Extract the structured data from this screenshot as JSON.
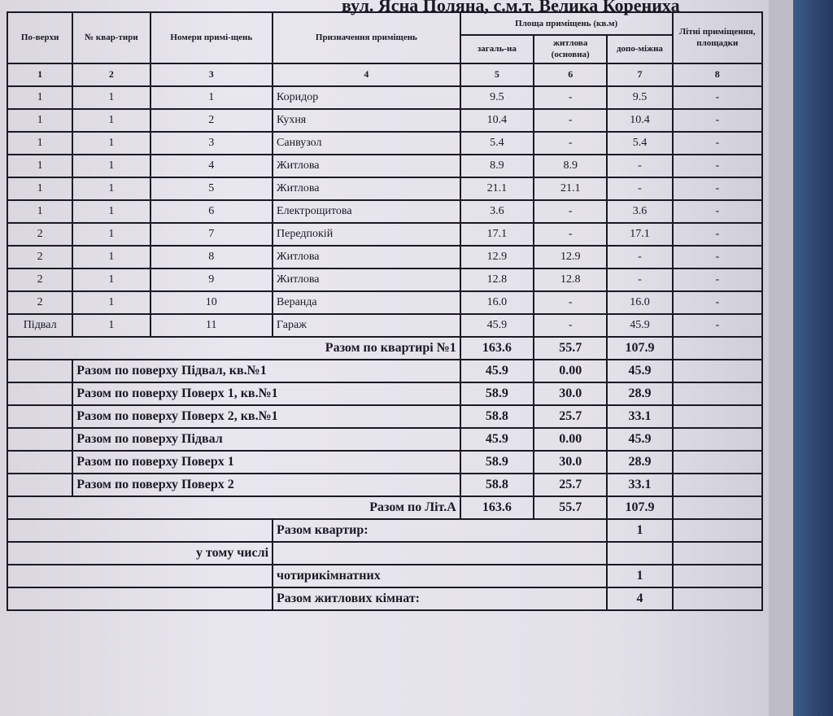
{
  "document": {
    "title": "вул. Ясна Поляна, с.м.т. Велика Корениха",
    "headers": {
      "floor": "По-верхи",
      "apartment": "№ квар-тири",
      "room_numbers": "Номери примі-щень",
      "purpose": "Призначення приміщень",
      "area_group": "Площа приміщень (кв.м)",
      "total": "загаль-на",
      "living": "житлова (основна)",
      "auxiliary": "допо-міжна",
      "summer": "Літні приміщення, площадки"
    },
    "column_numbers": [
      "1",
      "2",
      "3",
      "4",
      "5",
      "6",
      "7",
      "8"
    ],
    "rows": [
      {
        "floor": "1",
        "apt": "1",
        "room": "1",
        "purpose": "Коридор",
        "total": "9.5",
        "living": "-",
        "aux": "9.5",
        "summer": "-"
      },
      {
        "floor": "1",
        "apt": "1",
        "room": "2",
        "purpose": "Кухня",
        "total": "10.4",
        "living": "-",
        "aux": "10.4",
        "summer": "-"
      },
      {
        "floor": "1",
        "apt": "1",
        "room": "3",
        "purpose": "Санвузол",
        "total": "5.4",
        "living": "-",
        "aux": "5.4",
        "summer": "-"
      },
      {
        "floor": "1",
        "apt": "1",
        "room": "4",
        "purpose": "Житлова",
        "total": "8.9",
        "living": "8.9",
        "aux": "-",
        "summer": "-"
      },
      {
        "floor": "1",
        "apt": "1",
        "room": "5",
        "purpose": "Житлова",
        "total": "21.1",
        "living": "21.1",
        "aux": "-",
        "summer": "-"
      },
      {
        "floor": "1",
        "apt": "1",
        "room": "6",
        "purpose": "Електрощитова",
        "total": "3.6",
        "living": "-",
        "aux": "3.6",
        "summer": "-"
      },
      {
        "floor": "2",
        "apt": "1",
        "room": "7",
        "purpose": "Передпокій",
        "total": "17.1",
        "living": "-",
        "aux": "17.1",
        "summer": "-"
      },
      {
        "floor": "2",
        "apt": "1",
        "room": "8",
        "purpose": "Житлова",
        "total": "12.9",
        "living": "12.9",
        "aux": "-",
        "summer": "-"
      },
      {
        "floor": "2",
        "apt": "1",
        "room": "9",
        "purpose": "Житлова",
        "total": "12.8",
        "living": "12.8",
        "aux": "-",
        "summer": "-"
      },
      {
        "floor": "2",
        "apt": "1",
        "room": "10",
        "purpose": "Веранда",
        "total": "16.0",
        "living": "-",
        "aux": "16.0",
        "summer": "-"
      },
      {
        "floor": "Підвал",
        "apt": "1",
        "room": "11",
        "purpose": "Гараж",
        "total": "45.9",
        "living": "-",
        "aux": "45.9",
        "summer": "-"
      }
    ],
    "apartment_total": {
      "label": "Разом по квартирі №1",
      "total": "163.6",
      "living": "55.7",
      "aux": "107.9"
    },
    "floor_totals": [
      {
        "label": "Разом по поверху Підвал, кв.№1",
        "total": "45.9",
        "living": "0.00",
        "aux": "45.9"
      },
      {
        "label": "Разом по поверху Поверх 1, кв.№1",
        "total": "58.9",
        "living": "30.0",
        "aux": "28.9"
      },
      {
        "label": "Разом по поверху Поверх 2, кв.№1",
        "total": "58.8",
        "living": "25.7",
        "aux": "33.1"
      },
      {
        "label": "Разом по поверху Підвал",
        "total": "45.9",
        "living": "0.00",
        "aux": "45.9"
      },
      {
        "label": "Разом по поверху Поверх 1",
        "total": "58.9",
        "living": "30.0",
        "aux": "28.9"
      },
      {
        "label": "Разом по поверху Поверх 2",
        "total": "58.8",
        "living": "25.7",
        "aux": "33.1"
      }
    ],
    "lit_total": {
      "label": "Разом по Літ.А",
      "total": "163.6",
      "living": "55.7",
      "aux": "107.9"
    },
    "summary": {
      "apartments_label": "Разом квартир:",
      "apartments_value": "1",
      "including_label": "у тому числі",
      "four_room_label": "чотирикімнатних",
      "four_room_value": "1",
      "living_rooms_label": "Разом житлових кімнат:",
      "living_rooms_value": "4"
    }
  }
}
